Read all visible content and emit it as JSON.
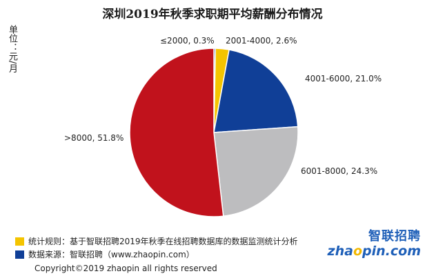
{
  "chart_data": {
    "type": "pie",
    "title": "深圳2019年秋季求职期平均薪酬分布情况",
    "unit_label": "单位：元/月",
    "slices": [
      {
        "label": "≤2000",
        "value": 0.3,
        "value_text": "0.3%",
        "display": "≤2000, 0.3%",
        "color": "#1c3f94"
      },
      {
        "label": "2001-4000",
        "value": 2.6,
        "value_text": "2.6%",
        "display": "2001-4000, 2.6%",
        "color": "#f4c400"
      },
      {
        "label": "4001-6000",
        "value": 21.0,
        "value_text": "21.0%",
        "display": "4001-6000, 21.0%",
        "color": "#103f97"
      },
      {
        "label": "6001-8000",
        "value": 24.3,
        "value_text": "24.3%",
        "display": "6001-8000, 24.3%",
        "color": "#bdbdbf"
      },
      {
        "label": ">8000",
        "value": 51.8,
        "value_text": "51.8%",
        "display": ">8000, 51.8%",
        "color": "#c1121c"
      }
    ]
  },
  "footer": {
    "notes": [
      {
        "text": "统计规则：基于智联招聘2019年秋季在线招聘数据库的数据监测统计分析",
        "color": "#f4c400"
      },
      {
        "text": "数据来源：智联招聘（www.zhaopin.com）",
        "color": "#103f97"
      }
    ],
    "copyright": "Copyright©2019 zhaopin all rights reserved"
  },
  "logo": {
    "cn": "智联招聘",
    "en_before": "zha",
    "en_o": "o",
    "en_after": "pin.com"
  }
}
